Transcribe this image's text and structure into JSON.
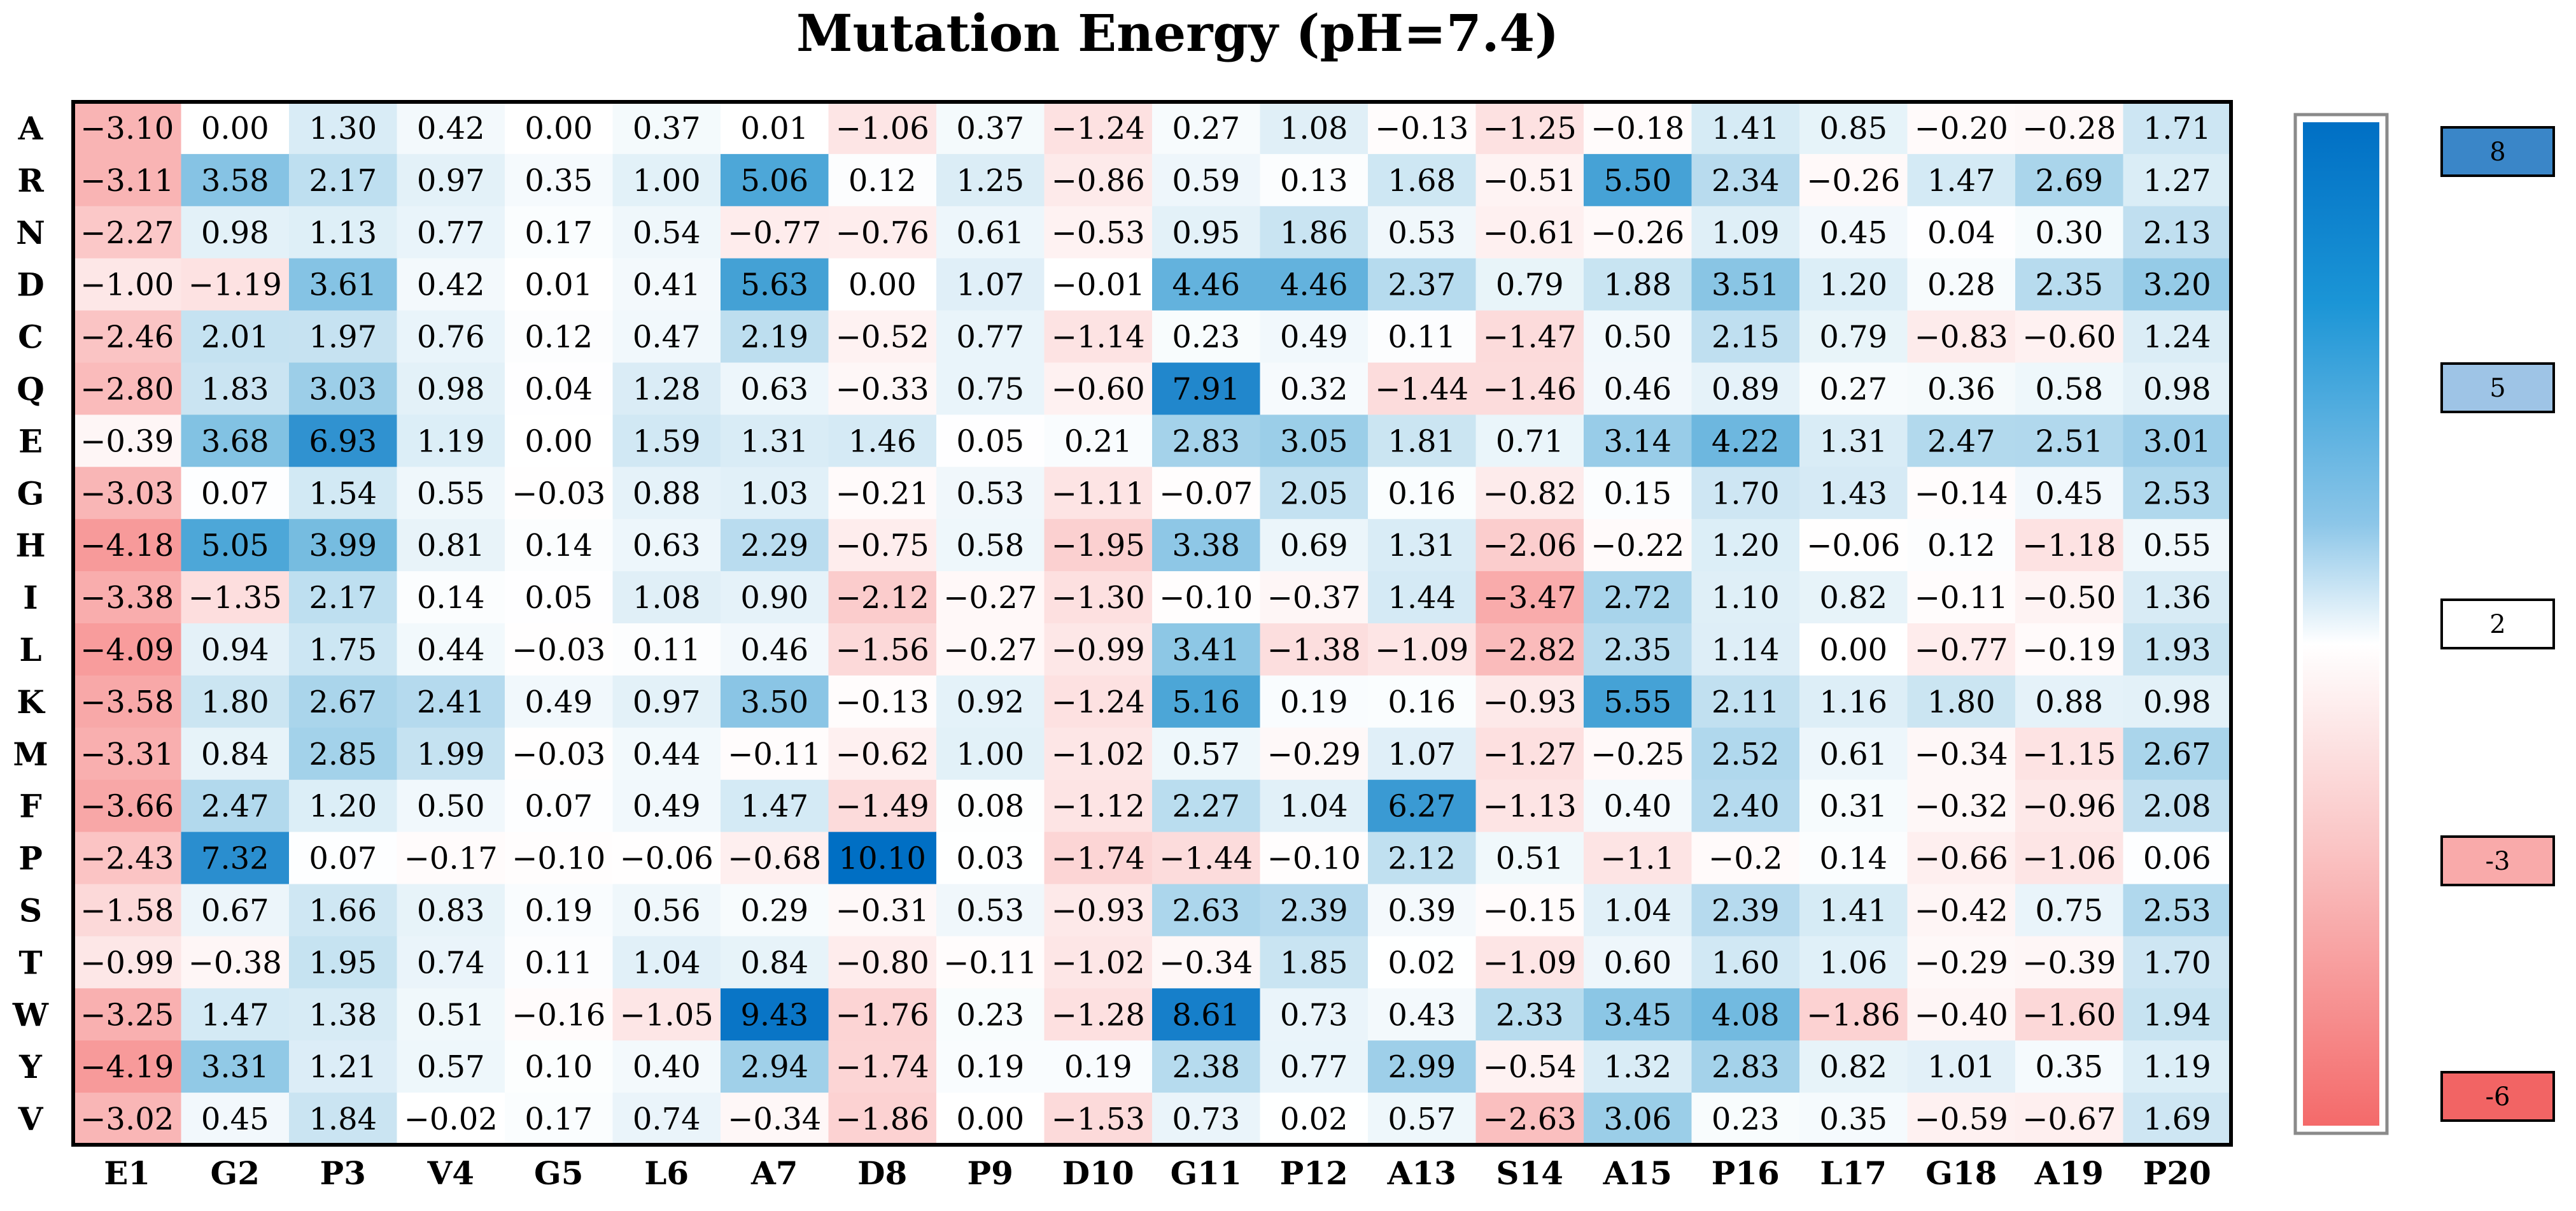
{
  "chart_data": {
    "type": "heatmap",
    "title": "Mutation Energy (pH=7.4)",
    "rows": [
      "A",
      "R",
      "N",
      "D",
      "C",
      "Q",
      "E",
      "G",
      "H",
      "I",
      "L",
      "K",
      "M",
      "F",
      "P",
      "S",
      "T",
      "W",
      "Y",
      "V"
    ],
    "columns": [
      "E1",
      "G2",
      "P3",
      "V4",
      "G5",
      "L6",
      "A7",
      "D8",
      "P9",
      "D10",
      "G11",
      "P12",
      "A13",
      "S14",
      "A15",
      "P16",
      "L17",
      "G18",
      "A19",
      "P20"
    ],
    "values": [
      [
        "-3.10",
        "0.00",
        "1.30",
        "0.42",
        "0.00",
        "0.37",
        "0.01",
        "-1.06",
        "0.37",
        "-1.24",
        "0.27",
        "1.08",
        "-0.13",
        "-1.25",
        "-0.18",
        "1.41",
        "0.85",
        "-0.20",
        "-0.28",
        "1.71"
      ],
      [
        "-3.11",
        "3.58",
        "2.17",
        "0.97",
        "0.35",
        "1.00",
        "5.06",
        "0.12",
        "1.25",
        "-0.86",
        "0.59",
        "0.13",
        "1.68",
        "-0.51",
        "5.50",
        "2.34",
        "-0.26",
        "1.47",
        "2.69",
        "1.27"
      ],
      [
        "-2.27",
        "0.98",
        "1.13",
        "0.77",
        "0.17",
        "0.54",
        "-0.77",
        "-0.76",
        "0.61",
        "-0.53",
        "0.95",
        "1.86",
        "0.53",
        "-0.61",
        "-0.26",
        "1.09",
        "0.45",
        "0.04",
        "0.30",
        "2.13"
      ],
      [
        "-1.00",
        "-1.19",
        "3.61",
        "0.42",
        "0.01",
        "0.41",
        "5.63",
        "0.00",
        "1.07",
        "-0.01",
        "4.46",
        "4.46",
        "2.37",
        "0.79",
        "1.88",
        "3.51",
        "1.20",
        "0.28",
        "2.35",
        "3.20"
      ],
      [
        "-2.46",
        "2.01",
        "1.97",
        "0.76",
        "0.12",
        "0.47",
        "2.19",
        "-0.52",
        "0.77",
        "-1.14",
        "0.23",
        "0.49",
        "0.11",
        "-1.47",
        "0.50",
        "2.15",
        "0.79",
        "-0.83",
        "-0.60",
        "1.24"
      ],
      [
        "-2.80",
        "1.83",
        "3.03",
        "0.98",
        "0.04",
        "1.28",
        "0.63",
        "-0.33",
        "0.75",
        "-0.60",
        "7.91",
        "0.32",
        "-1.44",
        "-1.46",
        "0.46",
        "0.89",
        "0.27",
        "0.36",
        "0.58",
        "0.98"
      ],
      [
        "-0.39",
        "3.68",
        "6.93",
        "1.19",
        "0.00",
        "1.59",
        "1.31",
        "1.46",
        "0.05",
        "0.21",
        "2.83",
        "3.05",
        "1.81",
        "0.71",
        "3.14",
        "4.22",
        "1.31",
        "2.47",
        "2.51",
        "3.01"
      ],
      [
        "-3.03",
        "0.07",
        "1.54",
        "0.55",
        "-0.03",
        "0.88",
        "1.03",
        "-0.21",
        "0.53",
        "-1.11",
        "-0.07",
        "2.05",
        "0.16",
        "-0.82",
        "0.15",
        "1.70",
        "1.43",
        "-0.14",
        "0.45",
        "2.53"
      ],
      [
        "-4.18",
        "5.05",
        "3.99",
        "0.81",
        "0.14",
        "0.63",
        "2.29",
        "-0.75",
        "0.58",
        "-1.95",
        "3.38",
        "0.69",
        "1.31",
        "-2.06",
        "-0.22",
        "1.20",
        "-0.06",
        "0.12",
        "-1.18",
        "0.55"
      ],
      [
        "-3.38",
        "-1.35",
        "2.17",
        "0.14",
        "0.05",
        "1.08",
        "0.90",
        "-2.12",
        "-0.27",
        "-1.30",
        "-0.10",
        "-0.37",
        "1.44",
        "-3.47",
        "2.72",
        "1.10",
        "0.82",
        "-0.11",
        "-0.50",
        "1.36"
      ],
      [
        "-4.09",
        "0.94",
        "1.75",
        "0.44",
        "-0.03",
        "0.11",
        "0.46",
        "-1.56",
        "-0.27",
        "-0.99",
        "3.41",
        "-1.38",
        "-1.09",
        "-2.82",
        "2.35",
        "1.14",
        "0.00",
        "-0.77",
        "-0.19",
        "1.93"
      ],
      [
        "-3.58",
        "1.80",
        "2.67",
        "2.41",
        "0.49",
        "0.97",
        "3.50",
        "-0.13",
        "0.92",
        "-1.24",
        "5.16",
        "0.19",
        "0.16",
        "-0.93",
        "5.55",
        "2.11",
        "1.16",
        "1.80",
        "0.88",
        "0.98"
      ],
      [
        "-3.31",
        "0.84",
        "2.85",
        "1.99",
        "-0.03",
        "0.44",
        "-0.11",
        "-0.62",
        "1.00",
        "-1.02",
        "0.57",
        "-0.29",
        "1.07",
        "-1.27",
        "-0.25",
        "2.52",
        "0.61",
        "-0.34",
        "-1.15",
        "2.67"
      ],
      [
        "-3.66",
        "2.47",
        "1.20",
        "0.50",
        "0.07",
        "0.49",
        "1.47",
        "-1.49",
        "0.08",
        "-1.12",
        "2.27",
        "1.04",
        "6.27",
        "-1.13",
        "0.40",
        "2.40",
        "0.31",
        "-0.32",
        "-0.96",
        "2.08"
      ],
      [
        "-2.43",
        "7.32",
        "0.07",
        "-0.17",
        "-0.10",
        "-0.06",
        "-0.68",
        "10.10",
        "0.03",
        "-1.74",
        "-1.44",
        "-0.10",
        "2.12",
        "0.51",
        "-1.1",
        "-0.2",
        "0.14",
        "-0.66",
        "-1.06",
        "0.06"
      ],
      [
        "-1.58",
        "0.67",
        "1.66",
        "0.83",
        "0.19",
        "0.56",
        "0.29",
        "-0.31",
        "0.53",
        "-0.93",
        "2.63",
        "2.39",
        "0.39",
        "-0.15",
        "1.04",
        "2.39",
        "1.41",
        "-0.42",
        "0.75",
        "2.53"
      ],
      [
        "-0.99",
        "-0.38",
        "1.95",
        "0.74",
        "0.11",
        "1.04",
        "0.84",
        "-0.80",
        "-0.11",
        "-1.02",
        "-0.34",
        "1.85",
        "0.02",
        "-1.09",
        "0.60",
        "1.60",
        "1.06",
        "-0.29",
        "-0.39",
        "1.70"
      ],
      [
        "-3.25",
        "1.47",
        "1.38",
        "0.51",
        "-0.16",
        "-1.05",
        "9.43",
        "-1.76",
        "0.23",
        "-1.28",
        "8.61",
        "0.73",
        "0.43",
        "2.33",
        "3.45",
        "4.08",
        "-1.86",
        "-0.40",
        "-1.60",
        "1.94"
      ],
      [
        "-4.19",
        "3.31",
        "1.21",
        "0.57",
        "0.10",
        "0.40",
        "2.94",
        "-1.74",
        "0.19",
        "0.19",
        "2.38",
        "0.77",
        "2.99",
        "-0.54",
        "1.32",
        "2.83",
        "0.82",
        "1.01",
        "0.35",
        "1.19"
      ],
      [
        "-3.02",
        "0.45",
        "1.84",
        "-0.02",
        "0.17",
        "0.74",
        "-0.34",
        "-1.86",
        "0.00",
        "-1.53",
        "0.73",
        "0.02",
        "0.57",
        "-2.63",
        "3.06",
        "0.23",
        "0.35",
        "-0.59",
        "-0.67",
        "1.69"
      ]
    ],
    "color_scale": {
      "min": -6,
      "max": 10,
      "stops": [
        {
          "value": -6,
          "color": "#f46e6e"
        },
        {
          "value": 0,
          "color": "#ffffff"
        },
        {
          "value": 2,
          "color": "#c5e2f1"
        },
        {
          "value": 5,
          "color": "#4ea8d8"
        },
        {
          "value": 10,
          "color": "#006fc4"
        }
      ]
    },
    "legend": {
      "position": "right",
      "ticks": [
        "8",
        "5",
        "2",
        "-3",
        "-6"
      ],
      "tick_colors": [
        "#3a86c8",
        "#9ec4e6",
        "#ffffff",
        "#f9aaaa",
        "#f26464"
      ]
    }
  }
}
